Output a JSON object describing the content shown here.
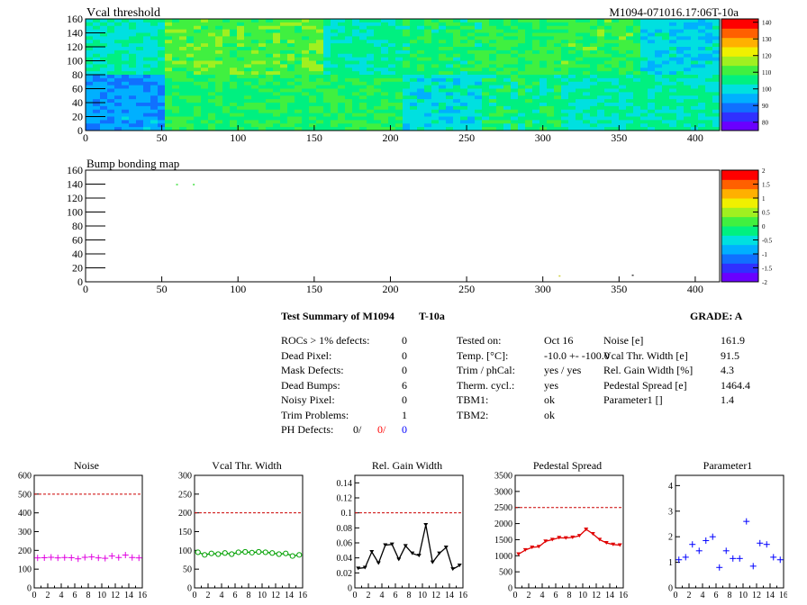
{
  "top": {
    "title_left": "Vcal threshold",
    "title_right": "M1094-071016.17:06T-10a"
  },
  "bump": {
    "title": "Bump bonding map"
  },
  "summary": {
    "title": "Test Summary of M1094",
    "tag": "T-10a",
    "grade": "GRADE:  A",
    "defects": [
      {
        "label": "ROCs > 1% defects:",
        "value": "0"
      },
      {
        "label": "Dead Pixel:",
        "value": "0"
      },
      {
        "label": "Mask Defects:",
        "value": "0"
      },
      {
        "label": "Dead Bumps:",
        "value": "6"
      },
      {
        "label": "Noisy Pixel:",
        "value": "0"
      },
      {
        "label": "Trim Problems:",
        "value": "1"
      }
    ],
    "ph_label": "PH Defects:",
    "ph_values": [
      "0/",
      "0/",
      "0"
    ],
    "tests": [
      {
        "label": "Tested on:",
        "value": "Oct 16"
      },
      {
        "label": "Temp. [°C]:",
        "value": "-10.0 +- -100.0"
      },
      {
        "label": "Trim / phCal:",
        "value": "yes / yes"
      },
      {
        "label": "Therm. cycl.:",
        "value": "yes"
      },
      {
        "label": "TBM1:",
        "value": "ok"
      },
      {
        "label": "TBM2:",
        "value": "ok"
      }
    ],
    "params": [
      {
        "label": "Noise [e]",
        "value": "161.9"
      },
      {
        "label": "Vcal Thr. Width [e]",
        "value": "91.5"
      },
      {
        "label": "Rel. Gain Width [%]",
        "value": "4.3"
      },
      {
        "label": "Pedestal Spread [e]",
        "value": "1464.4"
      },
      {
        "label": "Parameter1 []",
        "value": "1.4"
      }
    ],
    "colors": {
      "ph_red": "#ff0000",
      "ph_blue": "#0000ff"
    }
  },
  "chart_data": [
    {
      "type": "heatmap",
      "title": "Vcal threshold",
      "xlim": [
        0,
        416
      ],
      "ylim": [
        0,
        160
      ],
      "xticks": [
        0,
        50,
        100,
        150,
        200,
        250,
        300,
        350,
        400
      ],
      "yticks": [
        0,
        20,
        40,
        60,
        80,
        100,
        120,
        140,
        160
      ],
      "palette": [
        "#6a00ff",
        "#3030ff",
        "#1070ff",
        "#00b0ff",
        "#00e0e0",
        "#00f080",
        "#40f040",
        "#a0f020",
        "#f0f000",
        "#ffb000",
        "#ff6000",
        "#ff0000"
      ],
      "zticks": [
        80,
        90,
        100,
        110,
        120,
        130,
        140
      ],
      "zlim": [
        75,
        142
      ],
      "grid_cols": 8,
      "grid_rows": 2,
      "roc_levels": [
        [
          103,
          112,
          112,
          104,
          107,
          109,
          110,
          99
        ],
        [
          93,
          108,
          108,
          108,
          100,
          106,
          103,
          104
        ]
      ]
    },
    {
      "type": "heatmap",
      "title": "Bump bonding map",
      "xlim": [
        0,
        416
      ],
      "ylim": [
        0,
        160
      ],
      "xticks": [
        0,
        50,
        100,
        150,
        200,
        250,
        300,
        350,
        400
      ],
      "yticks": [
        0,
        20,
        40,
        60,
        80,
        100,
        120,
        140,
        160
      ],
      "zticks": [
        2,
        1.5,
        1,
        0.5,
        0,
        -0.5,
        -1,
        -1.5,
        -2
      ],
      "zlim": [
        -2,
        2
      ],
      "points": [
        {
          "x": 60,
          "y": 139,
          "color": "#40e040"
        },
        {
          "x": 71,
          "y": 139,
          "color": "#40e040"
        },
        {
          "x": 311,
          "y": 8,
          "color": "#d0d040"
        },
        {
          "x": 359,
          "y": 9,
          "color": "#404040"
        }
      ]
    },
    {
      "type": "scatter",
      "title": "Noise",
      "color": "#e000e0",
      "marker": "plus",
      "xlim": [
        0,
        16
      ],
      "ylim": [
        0,
        600
      ],
      "xticks": [
        0,
        2,
        4,
        6,
        8,
        10,
        12,
        14,
        16
      ],
      "yticks": [
        0,
        100,
        200,
        300,
        400,
        500,
        600
      ],
      "ref": 500,
      "x": [
        0,
        1,
        2,
        3,
        4,
        5,
        6,
        7,
        8,
        9,
        10,
        11,
        12,
        13,
        14,
        15
      ],
      "y": [
        160,
        161,
        163,
        160,
        162,
        161,
        155,
        163,
        165,
        160,
        158,
        170,
        162,
        175,
        162,
        160
      ]
    },
    {
      "type": "line",
      "title": "Vcal Thr. Width",
      "color": "#00a000",
      "marker": "circle",
      "xlim": [
        0,
        16
      ],
      "ylim": [
        0,
        300
      ],
      "xticks": [
        0,
        2,
        4,
        6,
        8,
        10,
        12,
        14,
        16
      ],
      "yticks": [
        0,
        50,
        100,
        150,
        200,
        250,
        300
      ],
      "ref": 200,
      "x": [
        0,
        1,
        2,
        3,
        4,
        5,
        6,
        7,
        8,
        9,
        10,
        11,
        12,
        13,
        14,
        15
      ],
      "y": [
        95,
        88,
        92,
        90,
        93,
        90,
        95,
        96,
        94,
        96,
        95,
        93,
        90,
        92,
        85,
        88
      ]
    },
    {
      "type": "line",
      "title": "Rel. Gain Width",
      "color": "#000000",
      "marker": "triangle",
      "xlim": [
        0,
        16
      ],
      "ylim": [
        0,
        0.15
      ],
      "xticks": [
        0,
        2,
        4,
        6,
        8,
        10,
        12,
        14,
        16
      ],
      "yticks": [
        0,
        0.02,
        0.04,
        0.06,
        0.08,
        0.1,
        0.12,
        0.14
      ],
      "ref": 0.1,
      "x": [
        0,
        1,
        2,
        3,
        4,
        5,
        6,
        7,
        8,
        9,
        10,
        11,
        12,
        13,
        14,
        15
      ],
      "y": [
        0.026,
        0.027,
        0.048,
        0.033,
        0.057,
        0.058,
        0.038,
        0.056,
        0.046,
        0.043,
        0.084,
        0.034,
        0.046,
        0.054,
        0.025,
        0.03
      ]
    },
    {
      "type": "line",
      "title": "Pedestal Spread",
      "color": "#e00000",
      "marker": "triangle",
      "xlim": [
        0,
        16
      ],
      "ylim": [
        0,
        3500
      ],
      "xticks": [
        0,
        2,
        4,
        6,
        8,
        10,
        12,
        14,
        16
      ],
      "yticks": [
        0,
        500,
        1000,
        1500,
        2000,
        2500,
        3000,
        3500
      ],
      "ref": 2500,
      "x": [
        0,
        1,
        2,
        3,
        4,
        5,
        6,
        7,
        8,
        9,
        10,
        11,
        12,
        13,
        14,
        15
      ],
      "y": [
        1050,
        1180,
        1260,
        1280,
        1450,
        1500,
        1560,
        1550,
        1570,
        1620,
        1820,
        1680,
        1500,
        1400,
        1350,
        1330
      ]
    },
    {
      "type": "scatter",
      "title": "Parameter1",
      "color": "#0000ff",
      "marker": "plus",
      "xlim": [
        0,
        16
      ],
      "ylim": [
        0,
        4.4
      ],
      "xticks": [
        0,
        2,
        4,
        6,
        8,
        10,
        12,
        14,
        16
      ],
      "yticks": [
        0,
        1,
        2,
        3,
        4
      ],
      "x": [
        0,
        1,
        2,
        3,
        4,
        5,
        6,
        7,
        8,
        9,
        10,
        11,
        12,
        13,
        14,
        15
      ],
      "y": [
        1.1,
        1.2,
        1.7,
        1.45,
        1.85,
        2.0,
        0.8,
        1.45,
        1.15,
        1.15,
        2.6,
        0.85,
        1.75,
        1.7,
        1.2,
        1.1
      ]
    }
  ]
}
